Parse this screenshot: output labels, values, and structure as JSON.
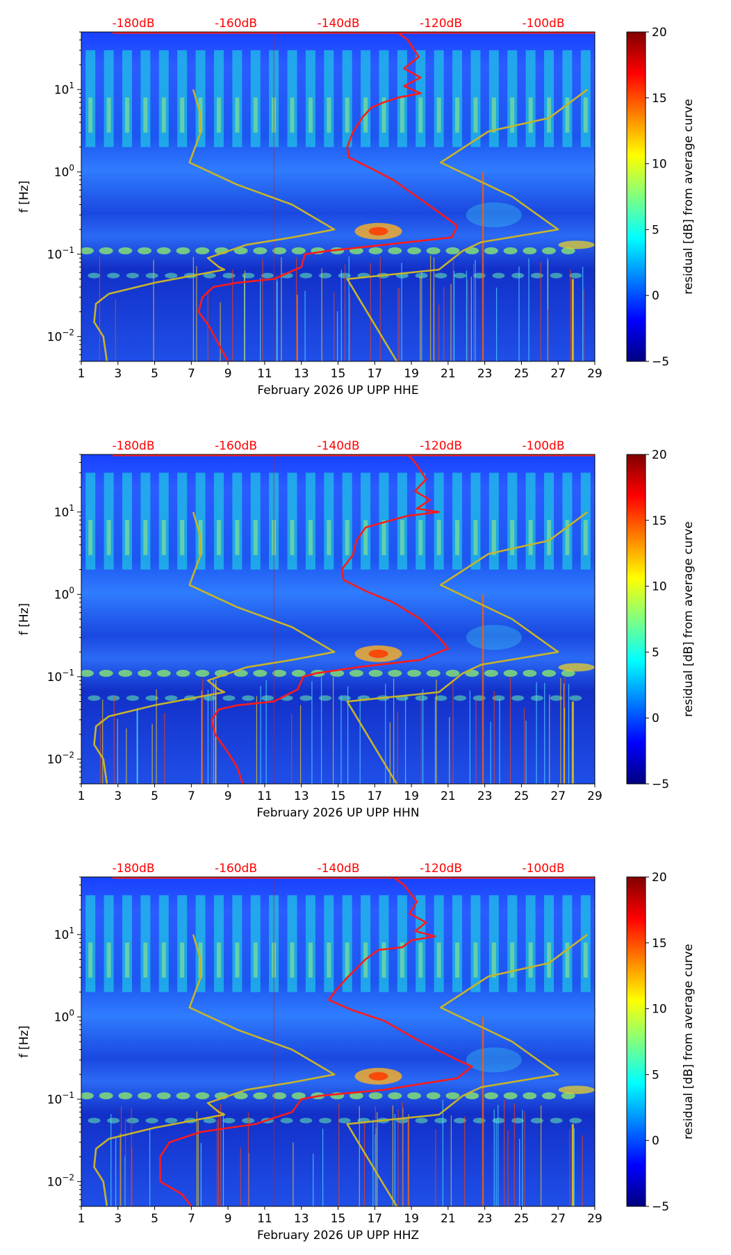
{
  "chart_data": [
    {
      "type": "heatmap",
      "title": "",
      "xlabel": "February 2026 UP UPP  HHE",
      "ylabel": "f [Hz]",
      "x_ticks": [
        "1",
        "3",
        "5",
        "7",
        "9",
        "11",
        "13",
        "15",
        "17",
        "19",
        "21",
        "23",
        "25",
        "27",
        "29"
      ],
      "xlim": [
        1,
        29
      ],
      "y_ticks": [
        {
          "base": "10",
          "exp": "1",
          "value": 10
        },
        {
          "base": "10",
          "exp": "0",
          "value": 1
        },
        {
          "base": "10",
          "exp": "−1",
          "value": 0.1
        },
        {
          "base": "10",
          "exp": "−2",
          "value": 0.01
        }
      ],
      "ylim": [
        0.005,
        50
      ],
      "y_scale": "log",
      "top_labels": [
        "-180dB",
        "-160dB",
        "-140dB",
        "-120dB",
        "-100dB"
      ],
      "colorbar": {
        "label": "residual [dB] from average curve",
        "ticks": [
          "20",
          "15",
          "10",
          "5",
          "0",
          "−5"
        ],
        "range": [
          -5,
          20
        ],
        "colormap": "jet"
      },
      "series": [
        {
          "name": "average PSD curve",
          "color": "#ff1a1a",
          "points": [
            [
              18.2,
              50
            ],
            [
              18.8,
              40
            ],
            [
              19.4,
              25
            ],
            [
              18.6,
              18
            ],
            [
              19.5,
              14
            ],
            [
              18.6,
              11
            ],
            [
              19.5,
              9
            ],
            [
              18.3,
              8
            ],
            [
              17.5,
              7
            ],
            [
              16.8,
              6
            ],
            [
              16.3,
              4.5
            ],
            [
              15.8,
              3
            ],
            [
              15.5,
              2
            ],
            [
              15.6,
              1.5
            ],
            [
              16.8,
              1.1
            ],
            [
              18,
              0.8
            ],
            [
              19.3,
              0.5
            ],
            [
              20.7,
              0.3
            ],
            [
              21.5,
              0.22
            ],
            [
              21.2,
              0.16
            ],
            [
              17.5,
              0.13
            ],
            [
              14.5,
              0.11
            ],
            [
              13.2,
              0.1
            ],
            [
              13,
              0.07
            ],
            [
              11.5,
              0.05
            ],
            [
              9.5,
              0.045
            ],
            [
              8.2,
              0.04
            ],
            [
              7.6,
              0.03
            ],
            [
              7.4,
              0.02
            ],
            [
              8,
              0.013
            ],
            [
              8.5,
              0.008
            ],
            [
              9,
              0.005
            ]
          ]
        },
        {
          "name": "low noise model",
          "color": "#c8b42a",
          "points": [
            [
              7.1,
              10
            ],
            [
              7.5,
              5
            ],
            [
              7.5,
              3
            ],
            [
              6.9,
              1.3
            ],
            [
              9.5,
              0.7
            ],
            [
              12.5,
              0.4
            ],
            [
              14.8,
              0.2
            ],
            [
              12.5,
              0.16
            ],
            [
              10,
              0.13
            ],
            [
              7.9,
              0.09
            ],
            [
              8.5,
              0.07
            ],
            [
              8.8,
              0.065
            ],
            [
              5,
              0.045
            ],
            [
              2.5,
              0.033
            ],
            [
              1.8,
              0.025
            ],
            [
              1.7,
              0.015
            ],
            [
              2.2,
              0.01
            ],
            [
              2.4,
              0.005
            ]
          ]
        },
        {
          "name": "high noise model",
          "color": "#c8b42a",
          "points": [
            [
              28.6,
              10
            ],
            [
              26.5,
              4.5
            ],
            [
              23.2,
              3.1
            ],
            [
              20.6,
              1.3
            ],
            [
              24.5,
              0.5
            ],
            [
              27,
              0.2
            ],
            [
              22.8,
              0.14
            ],
            [
              21.8,
              0.11
            ],
            [
              20.5,
              0.065
            ],
            [
              15.5,
              0.05
            ],
            [
              18.2,
              0.005
            ]
          ]
        }
      ]
    },
    {
      "type": "heatmap",
      "title": "",
      "xlabel": "February 2026 UP UPP  HHN",
      "ylabel": "f [Hz]",
      "x_ticks": [
        "1",
        "3",
        "5",
        "7",
        "9",
        "11",
        "13",
        "15",
        "17",
        "19",
        "21",
        "23",
        "25",
        "27",
        "29"
      ],
      "xlim": [
        1,
        29
      ],
      "y_ticks": [
        {
          "base": "10",
          "exp": "1",
          "value": 10
        },
        {
          "base": "10",
          "exp": "0",
          "value": 1
        },
        {
          "base": "10",
          "exp": "−1",
          "value": 0.1
        },
        {
          "base": "10",
          "exp": "−2",
          "value": 0.01
        }
      ],
      "ylim": [
        0.005,
        50
      ],
      "y_scale": "log",
      "top_labels": [
        "-180dB",
        "-160dB",
        "-140dB",
        "-120dB",
        "-100dB"
      ],
      "colorbar": {
        "label": "residual [dB] from average curve",
        "ticks": [
          "20",
          "15",
          "10",
          "5",
          "0",
          "−5"
        ],
        "range": [
          -5,
          20
        ],
        "colormap": "jet"
      },
      "series": [
        {
          "name": "average PSD curve",
          "color": "#ff1a1a",
          "points": [
            [
              18.8,
              50
            ],
            [
              19.2,
              40
            ],
            [
              19.8,
              25
            ],
            [
              19.2,
              18
            ],
            [
              20,
              14
            ],
            [
              19.3,
              11
            ],
            [
              20.5,
              10
            ],
            [
              18.8,
              9
            ],
            [
              17.5,
              7.5
            ],
            [
              16.5,
              6.5
            ],
            [
              16,
              4.5
            ],
            [
              15.8,
              3
            ],
            [
              15.2,
              2
            ],
            [
              15.3,
              1.5
            ],
            [
              16.5,
              1.1
            ],
            [
              18,
              0.8
            ],
            [
              19.5,
              0.5
            ],
            [
              20.5,
              0.3
            ],
            [
              21,
              0.22
            ],
            [
              19.5,
              0.16
            ],
            [
              16,
              0.13
            ],
            [
              13.8,
              0.11
            ],
            [
              13.1,
              0.1
            ],
            [
              12.8,
              0.07
            ],
            [
              11.5,
              0.05
            ],
            [
              9.5,
              0.045
            ],
            [
              8.5,
              0.04
            ],
            [
              8.1,
              0.03
            ],
            [
              8.3,
              0.02
            ],
            [
              9,
              0.012
            ],
            [
              9.5,
              0.008
            ],
            [
              9.8,
              0.005
            ]
          ]
        },
        {
          "name": "low noise model",
          "color": "#c8b42a",
          "points": [
            [
              7.1,
              10
            ],
            [
              7.5,
              5
            ],
            [
              7.5,
              3
            ],
            [
              6.9,
              1.3
            ],
            [
              9.5,
              0.7
            ],
            [
              12.5,
              0.4
            ],
            [
              14.8,
              0.2
            ],
            [
              12.5,
              0.16
            ],
            [
              10,
              0.13
            ],
            [
              7.9,
              0.09
            ],
            [
              8.5,
              0.07
            ],
            [
              8.8,
              0.065
            ],
            [
              5,
              0.045
            ],
            [
              2.5,
              0.033
            ],
            [
              1.8,
              0.025
            ],
            [
              1.7,
              0.015
            ],
            [
              2.2,
              0.01
            ],
            [
              2.4,
              0.005
            ]
          ]
        },
        {
          "name": "high noise model",
          "color": "#c8b42a",
          "points": [
            [
              28.6,
              10
            ],
            [
              26.5,
              4.5
            ],
            [
              23.2,
              3.1
            ],
            [
              20.6,
              1.3
            ],
            [
              24.5,
              0.5
            ],
            [
              27,
              0.2
            ],
            [
              22.8,
              0.14
            ],
            [
              21.8,
              0.11
            ],
            [
              20.5,
              0.065
            ],
            [
              15.5,
              0.05
            ],
            [
              18.2,
              0.005
            ]
          ]
        }
      ]
    },
    {
      "type": "heatmap",
      "title": "",
      "xlabel": "February 2026 UP UPP  HHZ",
      "ylabel": "f [Hz]",
      "x_ticks": [
        "1",
        "3",
        "5",
        "7",
        "9",
        "11",
        "13",
        "15",
        "17",
        "19",
        "21",
        "23",
        "25",
        "27",
        "29"
      ],
      "xlim": [
        1,
        29
      ],
      "y_ticks": [
        {
          "base": "10",
          "exp": "1",
          "value": 10
        },
        {
          "base": "10",
          "exp": "0",
          "value": 1
        },
        {
          "base": "10",
          "exp": "−1",
          "value": 0.1
        },
        {
          "base": "10",
          "exp": "−2",
          "value": 0.01
        }
      ],
      "ylim": [
        0.005,
        50
      ],
      "y_scale": "log",
      "top_labels": [
        "-180dB",
        "-160dB",
        "-140dB",
        "-120dB",
        "-100dB"
      ],
      "colorbar": {
        "label": "residual [dB] from average curve",
        "ticks": [
          "20",
          "15",
          "10",
          "5",
          "0",
          "−5"
        ],
        "range": [
          -5,
          20
        ],
        "colormap": "jet"
      },
      "series": [
        {
          "name": "average PSD curve",
          "color": "#ff1a1a",
          "points": [
            [
              18,
              50
            ],
            [
              18.6,
              40
            ],
            [
              19.3,
              25
            ],
            [
              18.9,
              18
            ],
            [
              19.8,
              14
            ],
            [
              19.2,
              11
            ],
            [
              20.3,
              9.5
            ],
            [
              19,
              8.5
            ],
            [
              18.5,
              7
            ],
            [
              17.2,
              6.5
            ],
            [
              16.5,
              5
            ],
            [
              15.5,
              3
            ],
            [
              14.8,
              2
            ],
            [
              14.5,
              1.6
            ],
            [
              15.8,
              1.2
            ],
            [
              17.5,
              0.9
            ],
            [
              19.5,
              0.5
            ],
            [
              21.5,
              0.3
            ],
            [
              22.3,
              0.25
            ],
            [
              21.5,
              0.18
            ],
            [
              17.5,
              0.13
            ],
            [
              14,
              0.11
            ],
            [
              13,
              0.1
            ],
            [
              12.5,
              0.07
            ],
            [
              10.5,
              0.05
            ],
            [
              7.5,
              0.04
            ],
            [
              5.8,
              0.03
            ],
            [
              5.3,
              0.02
            ],
            [
              5.3,
              0.01
            ],
            [
              6.5,
              0.007
            ],
            [
              7,
              0.005
            ]
          ]
        },
        {
          "name": "low noise model",
          "color": "#c8b42a",
          "points": [
            [
              7.1,
              10
            ],
            [
              7.5,
              5
            ],
            [
              7.5,
              3
            ],
            [
              6.9,
              1.3
            ],
            [
              9.5,
              0.7
            ],
            [
              12.5,
              0.4
            ],
            [
              14.8,
              0.2
            ],
            [
              12.5,
              0.16
            ],
            [
              10,
              0.13
            ],
            [
              7.9,
              0.09
            ],
            [
              8.5,
              0.07
            ],
            [
              8.8,
              0.065
            ],
            [
              5,
              0.045
            ],
            [
              2.5,
              0.033
            ],
            [
              1.8,
              0.025
            ],
            [
              1.7,
              0.015
            ],
            [
              2.2,
              0.01
            ],
            [
              2.4,
              0.005
            ]
          ]
        },
        {
          "name": "high noise model",
          "color": "#c8b42a",
          "points": [
            [
              28.6,
              10
            ],
            [
              26.5,
              4.5
            ],
            [
              23.2,
              3.1
            ],
            [
              20.6,
              1.3
            ],
            [
              24.5,
              0.5
            ],
            [
              27,
              0.2
            ],
            [
              22.8,
              0.14
            ],
            [
              21.8,
              0.11
            ],
            [
              20.5,
              0.065
            ],
            [
              15.5,
              0.05
            ],
            [
              18.2,
              0.005
            ]
          ]
        }
      ]
    }
  ]
}
